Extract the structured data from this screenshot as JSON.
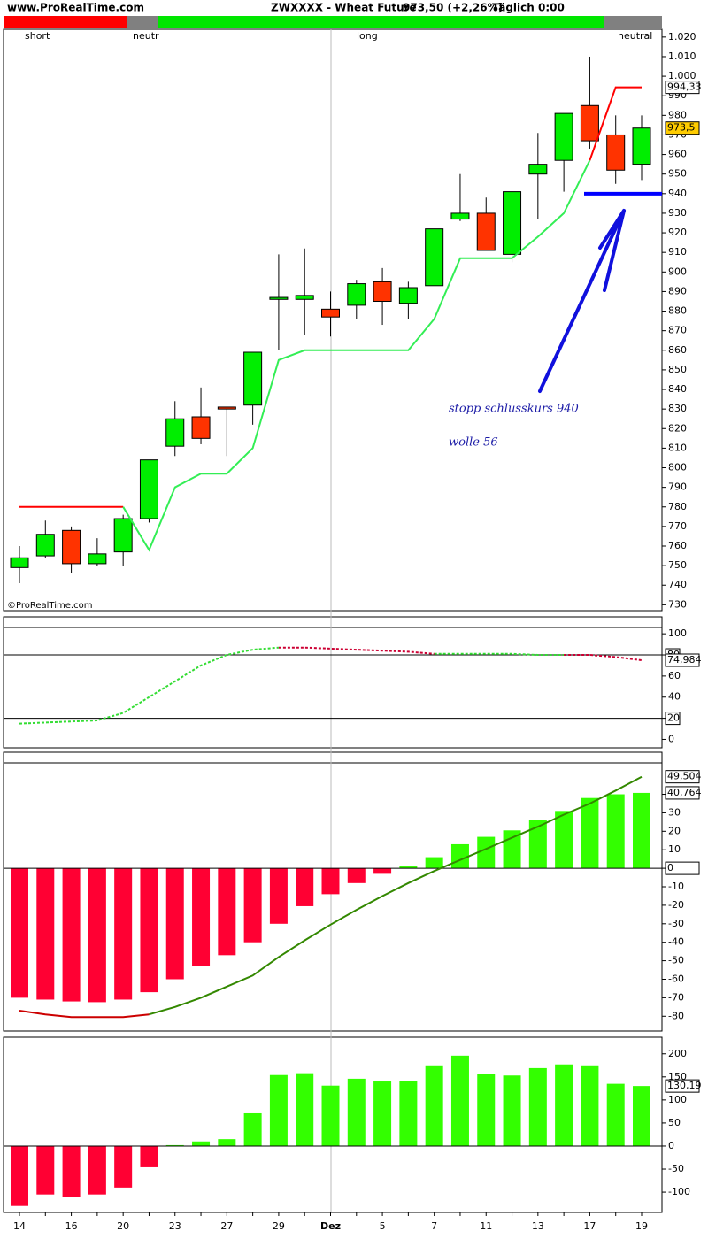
{
  "header": {
    "site": "www.ProRealTime.com",
    "title": "ZWXXXX - Wheat Future",
    "quote": "973,50 (+2,26%)",
    "period": "Täglich  0:00",
    "bands": [
      {
        "label": "short",
        "color": "#ff0000"
      },
      {
        "label": "neutr",
        "color": "#808080"
      },
      {
        "label": "long",
        "color": "#00e600"
      },
      {
        "label": "neutral",
        "color": "#808080"
      }
    ]
  },
  "chart_data": [
    {
      "type": "candlestick",
      "up_color": "#00ee00",
      "down_color": "#ff3300",
      "open": [
        749,
        755,
        768,
        751,
        757,
        774,
        811,
        826,
        831,
        832,
        886,
        886,
        881,
        883,
        895,
        884,
        893,
        927,
        930,
        909,
        950,
        957,
        985,
        970,
        955
      ],
      "high": [
        760,
        773,
        770,
        764,
        776,
        804,
        834,
        841,
        831,
        859,
        909,
        912,
        890,
        896,
        902,
        895,
        922,
        950,
        938,
        941,
        971,
        981,
        1010,
        980,
        980
      ],
      "low": [
        741,
        754,
        746,
        750,
        750,
        772,
        806,
        812,
        806,
        822,
        860,
        868,
        867,
        876,
        873,
        876,
        893,
        926,
        911,
        905,
        927,
        941,
        963,
        945,
        947
      ],
      "close": [
        754,
        766,
        751,
        756,
        774,
        804,
        825,
        815,
        830,
        859,
        887,
        888,
        877,
        894,
        885,
        892,
        922,
        930,
        911,
        941,
        955,
        981,
        967,
        952,
        973.5
      ],
      "series": [
        {
          "color": "#ff0000",
          "values": [
            780,
            780,
            780,
            780,
            780,
            null,
            null,
            null,
            null,
            null,
            null,
            null,
            null,
            null,
            null,
            null,
            null,
            null,
            null,
            null,
            null,
            null,
            null,
            null,
            null
          ]
        },
        {
          "color": "#33ee55",
          "values": [
            null,
            null,
            null,
            null,
            780,
            758,
            790,
            797,
            797,
            810,
            855,
            860,
            860,
            860,
            860,
            860,
            876,
            907,
            907,
            907,
            918,
            930,
            957,
            null,
            null
          ]
        },
        {
          "color": "#ff0000",
          "values": [
            null,
            null,
            null,
            null,
            null,
            null,
            null,
            null,
            null,
            null,
            null,
            null,
            null,
            null,
            null,
            null,
            null,
            null,
            null,
            null,
            null,
            null,
            957,
            994.33,
            994.33
          ]
        }
      ],
      "ylim": [
        727,
        1024
      ],
      "yticks": [
        730,
        740,
        750,
        760,
        770,
        780,
        790,
        800,
        810,
        820,
        830,
        840,
        850,
        860,
        870,
        880,
        890,
        900,
        910,
        920,
        930,
        940,
        950,
        960,
        970,
        980,
        990,
        {
          "value": 1000,
          "label": "1.000"
        },
        {
          "value": 1010,
          "label": "1.010"
        },
        {
          "value": 1020,
          "label": "1.020"
        }
      ],
      "price_tags": [
        {
          "value": 994.33,
          "label": "994,33",
          "color": "#ffffff",
          "text_color": "#cc0000"
        },
        {
          "value": 973.5,
          "label": "973,5",
          "color": "#ffcc00",
          "text_color": "#000000"
        }
      ],
      "hline": {
        "value": 940,
        "color": "#0000ff"
      },
      "annotations": [
        "stopp schlusskurs 940",
        "wolle 56"
      ],
      "copyright": "©ProRealTime.com"
    },
    {
      "type": "line",
      "dashed": true,
      "series": [
        {
          "color": "#33dd33",
          "values": [
            15,
            16,
            17,
            18,
            25,
            40,
            55,
            70,
            80,
            85,
            87,
            null,
            null,
            null,
            null,
            null,
            81,
            81,
            81,
            81,
            80,
            80,
            null,
            null,
            null
          ]
        },
        {
          "color": "#cc0033",
          "values": [
            null,
            null,
            null,
            null,
            null,
            null,
            null,
            null,
            null,
            null,
            87,
            87,
            86,
            85,
            84,
            83,
            81,
            null,
            null,
            null,
            null,
            80,
            80,
            78,
            74.984
          ]
        }
      ],
      "levels": [
        80,
        20
      ],
      "ylim": [
        -8,
        106
      ],
      "yticks": [
        0,
        20,
        40,
        60,
        80,
        100
      ],
      "price_tags": [
        {
          "value": 74.984,
          "label": "74,984",
          "color": "#ffffff",
          "text_color": "#cc0033"
        }
      ]
    },
    {
      "type": "histogram_line",
      "pos_color": "#33ff00",
      "neg_color": "#ff0033",
      "values": [
        -70,
        -71,
        -72,
        -72.4,
        -71,
        -67,
        -60,
        -53,
        -47,
        -40,
        -30,
        -20.5,
        -14,
        -8,
        -3,
        1,
        6,
        13,
        17,
        20.5,
        26,
        31,
        38,
        40,
        40.764
      ],
      "series": [
        {
          "color": "#cc0000",
          "values": [
            -77,
            -79,
            -80.5,
            -80.5,
            -80.5,
            -79,
            null,
            null,
            null,
            null,
            null,
            null,
            null,
            null,
            null,
            null,
            null,
            null,
            null,
            null,
            null,
            null,
            null,
            null,
            null
          ]
        },
        {
          "color": "#338800",
          "values": [
            null,
            null,
            null,
            null,
            null,
            -79,
            -75,
            -70,
            -64,
            -58,
            -48,
            -39,
            -30.5,
            -22.5,
            -15,
            -8,
            -1.5,
            4.5,
            10.5,
            16.5,
            22.5,
            29,
            35,
            42,
            49.504
          ]
        }
      ],
      "ylim": [
        -88,
        57
      ],
      "yticks": [
        -80,
        -70,
        -60,
        -50,
        -40,
        -30,
        -20,
        -10,
        0,
        10,
        20,
        30,
        40
      ],
      "price_tags": [
        {
          "value": 49.504,
          "label": "49,504",
          "color": "#ffffff",
          "text_color": "#338800"
        },
        {
          "value": 40.764,
          "label": "40,764",
          "color": "#ffffff",
          "text_color": "#33aa00"
        },
        {
          "value": 0,
          "label": "0",
          "color": "#ffffff",
          "text_color": "#000000"
        }
      ]
    },
    {
      "type": "histogram",
      "pos_color": "#33ff00",
      "neg_color": "#ff0033",
      "categories": [
        "14",
        null,
        "16",
        null,
        "20",
        null,
        "23",
        null,
        "27",
        null,
        "29",
        null,
        "Dez",
        null,
        "5",
        null,
        "7",
        null,
        "11",
        null,
        "13",
        null,
        "17",
        null,
        "19"
      ],
      "values": [
        -130,
        -105,
        -111,
        -105,
        -90,
        -46,
        2,
        10,
        15,
        71,
        154,
        158,
        131,
        146,
        140,
        141,
        175,
        196,
        156,
        153,
        169,
        177,
        175,
        135,
        130.19
      ],
      "ylim": [
        -144,
        236
      ],
      "yticks": [
        -100,
        -50,
        0,
        50,
        100,
        150,
        200
      ],
      "price_tags": [
        {
          "value": 130.19,
          "label": "130,19",
          "color": "#ffffff",
          "text_color": "#33aa00"
        }
      ]
    }
  ]
}
